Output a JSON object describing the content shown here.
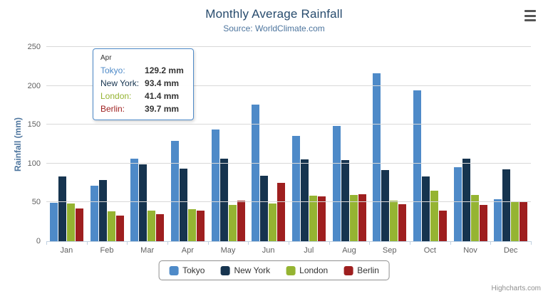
{
  "chart": {
    "title": "Monthly Average Rainfall",
    "subtitle": "Source: WorldClimate.com",
    "ylabel": "Rainfall (mm)",
    "credits": "Highcharts.com"
  },
  "tooltip": {
    "category": "Apr",
    "rows": [
      {
        "name": "Tokyo",
        "value": "129.2 mm"
      },
      {
        "name": "New York",
        "value": "93.4 mm"
      },
      {
        "name": "London",
        "value": "41.4 mm"
      },
      {
        "name": "Berlin",
        "value": "39.7 mm"
      }
    ]
  },
  "chart_data": {
    "type": "bar",
    "title": "Monthly Average Rainfall",
    "subtitle": "Source: WorldClimate.com",
    "xlabel": "",
    "ylabel": "Rainfall (mm)",
    "ylim": [
      0,
      250
    ],
    "yticks": [
      0,
      50,
      100,
      150,
      200,
      250
    ],
    "grid": true,
    "legend_position": "bottom",
    "categories": [
      "Jan",
      "Feb",
      "Mar",
      "Apr",
      "May",
      "Jun",
      "Jul",
      "Aug",
      "Sep",
      "Oct",
      "Nov",
      "Dec"
    ],
    "series": [
      {
        "name": "Tokyo",
        "color": "#4e8ac8",
        "values": [
          49.9,
          71.5,
          106.4,
          129.2,
          144.0,
          176.0,
          135.6,
          148.5,
          216.4,
          194.1,
          95.6,
          54.4
        ]
      },
      {
        "name": "New York",
        "color": "#16344f",
        "values": [
          83.6,
          78.8,
          98.5,
          93.4,
          106.0,
          84.5,
          105.0,
          104.3,
          91.2,
          83.5,
          106.6,
          92.3
        ]
      },
      {
        "name": "London",
        "color": "#95b432",
        "values": [
          48.9,
          38.8,
          39.3,
          41.4,
          47.0,
          48.3,
          59.0,
          59.6,
          52.4,
          65.2,
          59.3,
          51.2
        ]
      },
      {
        "name": "Berlin",
        "color": "#9e1f1f",
        "values": [
          42.4,
          33.2,
          34.5,
          39.7,
          52.6,
          75.5,
          57.4,
          60.4,
          47.6,
          39.1,
          46.8,
          51.1
        ]
      }
    ]
  }
}
